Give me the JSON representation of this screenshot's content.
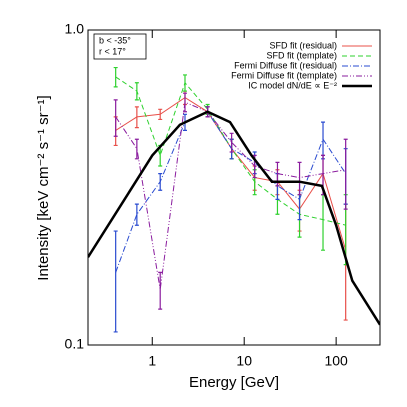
{
  "chart_data": {
    "type": "line",
    "xlabel": "Energy [GeV]",
    "ylabel": "Intensity [keV cm⁻² s⁻¹ sr⁻¹]",
    "xscale": "log",
    "yscale": "log",
    "xlim": [
      0.2,
      300
    ],
    "ylim": [
      0.1,
      1.0
    ],
    "xticks": [
      1,
      10,
      100
    ],
    "yticks": [
      {
        "value": 0.1,
        "label": "0.1"
      },
      {
        "value": 1,
        "label": "1.0"
      }
    ],
    "annotations": [
      "b < -35°",
      "r < 17°"
    ],
    "legend": "upper right",
    "series": [
      {
        "name": "SFD fit (residual)",
        "color": "#e8504a",
        "style": "solid",
        "x": [
          0.4,
          0.68,
          1.22,
          2.27,
          4.0,
          7.3,
          13,
          23,
          40,
          72,
          127
        ],
        "values": [
          0.48,
          0.53,
          0.54,
          0.61,
          0.55,
          0.42,
          0.34,
          0.33,
          0.27,
          0.35,
          0.2
        ],
        "errors": [
          0.05,
          0.04,
          0.02,
          0.03,
          0.02,
          0.03,
          0.03,
          0.03,
          0.04,
          0.05,
          0.08
        ]
      },
      {
        "name": "SFD fit (template)",
        "color": "#2ed12e",
        "style": "dashed",
        "x": [
          0.4,
          0.68,
          1.22,
          2.27,
          4.0,
          7.3,
          13,
          23,
          40,
          72,
          127
        ],
        "values": [
          0.71,
          0.64,
          0.4,
          0.68,
          0.56,
          0.42,
          0.33,
          0.29,
          0.26,
          0.25,
          0.24
        ],
        "errors": [
          0.05,
          0.04,
          0.03,
          0.04,
          0.02,
          0.03,
          0.03,
          0.03,
          0.04,
          0.05,
          0.06
        ]
      },
      {
        "name": "Fermi Diffuse fit (residual)",
        "color": "#2a4bd0",
        "style": "dashdot",
        "x": [
          0.4,
          0.68,
          1.22,
          2.27,
          4.0,
          7.3,
          13,
          23,
          40,
          72,
          127
        ],
        "values": [
          0.17,
          0.26,
          0.33,
          0.51,
          0.55,
          0.42,
          0.38,
          0.32,
          0.29,
          0.45,
          0.35
        ],
        "errors": [
          0.06,
          0.02,
          0.02,
          0.03,
          0.02,
          0.03,
          0.03,
          0.03,
          0.04,
          0.06,
          0.07
        ]
      },
      {
        "name": "Fermi Diffuse fit (template)",
        "color": "#8a1c9e",
        "style": "dashdotdot",
        "x": [
          0.4,
          0.68,
          1.22,
          2.27,
          4.0,
          7.3,
          13,
          23,
          40,
          72,
          127
        ],
        "values": [
          0.53,
          0.42,
          0.15,
          0.59,
          0.55,
          0.44,
          0.37,
          0.35,
          0.34,
          0.35,
          0.36
        ],
        "errors": [
          0.07,
          0.03,
          0.02,
          0.04,
          0.02,
          0.03,
          0.03,
          0.03,
          0.04,
          0.05,
          0.09
        ]
      },
      {
        "name": "IC model dN/dE ∝ E⁻²",
        "color": "#000000",
        "style": "thick",
        "x": [
          0.2,
          0.5,
          1,
          2,
          4,
          7,
          12,
          20,
          40,
          70,
          100,
          150,
          300
        ],
        "values": [
          0.19,
          0.29,
          0.4,
          0.5,
          0.55,
          0.51,
          0.4,
          0.33,
          0.33,
          0.32,
          0.24,
          0.16,
          0.116
        ]
      }
    ]
  }
}
